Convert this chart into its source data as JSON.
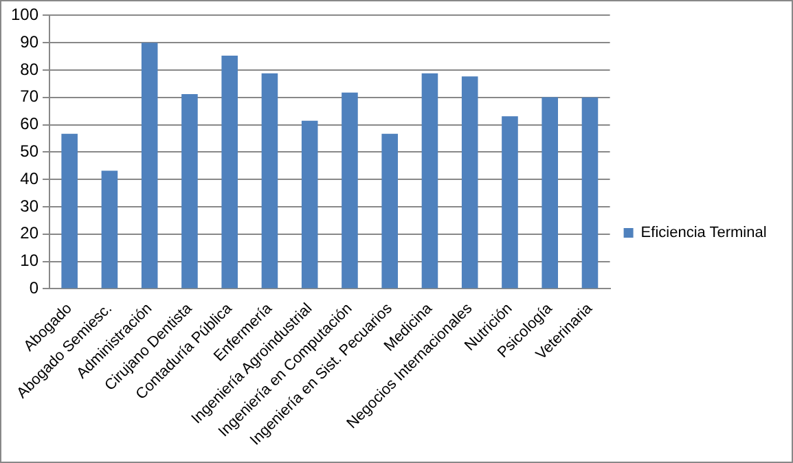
{
  "chart_data": {
    "type": "bar",
    "categories": [
      "Abogado",
      "Abogado Semiesc.",
      "Administración",
      "Cirujano Dentista",
      "Contaduría Pública",
      "Enfermería",
      "Ingeniería Agroindustrial",
      "Ingeniería en Computación",
      "Ingeniería en Sist. Pecuarios",
      "Medicina",
      "Negocios Internacionales",
      "Nutrición",
      "Psicología",
      "Veterinaria"
    ],
    "series": [
      {
        "name": "Eficiencia Terminal",
        "color": "#4f81bd",
        "values": [
          56.7,
          43.2,
          90,
          71.2,
          85.3,
          78.8,
          61.5,
          71.8,
          56.7,
          78.8,
          77.7,
          63.1,
          70.1,
          70
        ]
      }
    ],
    "ylim": [
      0,
      100
    ],
    "yticks": [
      0,
      10,
      20,
      30,
      40,
      50,
      60,
      70,
      80,
      90,
      100
    ],
    "grid": "y",
    "legend": "right"
  }
}
